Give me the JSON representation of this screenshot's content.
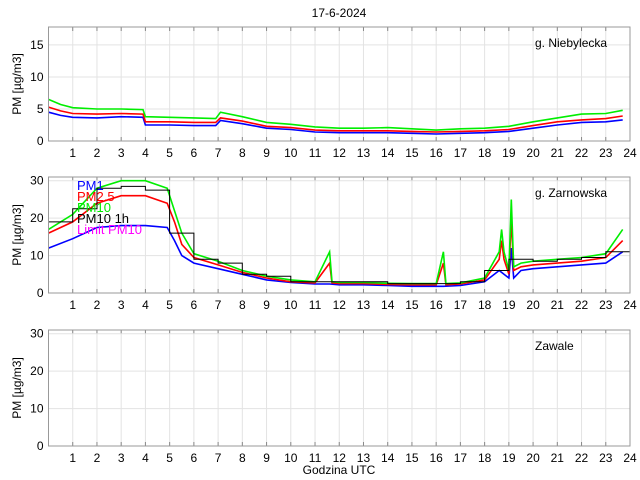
{
  "chart_data": [
    {
      "type": "line",
      "title": "17-6-2024",
      "station": "g. Niebylecka",
      "ylabel": "PM [µg/m3]",
      "xlabel": "",
      "xlim": [
        0,
        24
      ],
      "ylim": [
        0,
        17.8
      ],
      "yticks": [
        0,
        5,
        10,
        15
      ],
      "xticks": [
        1,
        2,
        3,
        4,
        5,
        6,
        7,
        8,
        9,
        10,
        11,
        12,
        13,
        14,
        15,
        16,
        17,
        18,
        19,
        20,
        21,
        22,
        23,
        24
      ],
      "grid": true,
      "series": [
        {
          "name": "PM1",
          "color": "#0000ff",
          "points": [
            [
              0,
              4.5
            ],
            [
              0.5,
              4
            ],
            [
              1,
              3.7
            ],
            [
              2,
              3.6
            ],
            [
              3,
              3.8
            ],
            [
              3.9,
              3.7
            ],
            [
              4,
              2.5
            ],
            [
              5,
              2.5
            ],
            [
              6,
              2.4
            ],
            [
              6.9,
              2.4
            ],
            [
              7.1,
              3.2
            ],
            [
              8,
              2.7
            ],
            [
              9,
              2
            ],
            [
              10,
              1.8
            ],
            [
              11,
              1.4
            ],
            [
              12,
              1.3
            ],
            [
              13,
              1.3
            ],
            [
              14,
              1.3
            ],
            [
              15,
              1.2
            ],
            [
              16,
              1.1
            ],
            [
              17,
              1.2
            ],
            [
              18,
              1.3
            ],
            [
              19,
              1.5
            ],
            [
              20,
              2
            ],
            [
              21,
              2.5
            ],
            [
              22,
              2.9
            ],
            [
              23,
              3
            ],
            [
              23.7,
              3.3
            ]
          ]
        },
        {
          "name": "PM2.5",
          "color": "#ff0000",
          "points": [
            [
              0,
              5.3
            ],
            [
              0.5,
              4.7
            ],
            [
              1,
              4.3
            ],
            [
              2,
              4.2
            ],
            [
              3,
              4.3
            ],
            [
              3.9,
              4.2
            ],
            [
              4,
              3
            ],
            [
              5,
              3
            ],
            [
              6,
              2.9
            ],
            [
              6.9,
              2.9
            ],
            [
              7.1,
              3.6
            ],
            [
              8,
              3.1
            ],
            [
              9,
              2.3
            ],
            [
              10,
              2.1
            ],
            [
              11,
              1.7
            ],
            [
              12,
              1.6
            ],
            [
              13,
              1.6
            ],
            [
              14,
              1.6
            ],
            [
              15,
              1.5
            ],
            [
              16,
              1.4
            ],
            [
              17,
              1.5
            ],
            [
              18,
              1.6
            ],
            [
              19,
              1.8
            ],
            [
              20,
              2.4
            ],
            [
              21,
              3
            ],
            [
              22,
              3.3
            ],
            [
              23,
              3.5
            ],
            [
              23.7,
              3.9
            ]
          ]
        },
        {
          "name": "PM10",
          "color": "#00ee00",
          "points": [
            [
              0,
              6.5
            ],
            [
              0.5,
              5.7
            ],
            [
              1,
              5.2
            ],
            [
              2,
              5
            ],
            [
              3,
              5
            ],
            [
              3.9,
              4.9
            ],
            [
              4,
              3.8
            ],
            [
              5,
              3.7
            ],
            [
              6,
              3.6
            ],
            [
              6.9,
              3.5
            ],
            [
              7.1,
              4.5
            ],
            [
              8,
              3.8
            ],
            [
              9,
              2.9
            ],
            [
              10,
              2.6
            ],
            [
              11,
              2.2
            ],
            [
              12,
              2
            ],
            [
              13,
              2
            ],
            [
              14,
              2.1
            ],
            [
              15,
              1.9
            ],
            [
              16,
              1.7
            ],
            [
              17,
              1.9
            ],
            [
              18,
              2
            ],
            [
              19,
              2.3
            ],
            [
              20,
              3
            ],
            [
              21,
              3.6
            ],
            [
              22,
              4.2
            ],
            [
              23,
              4.3
            ],
            [
              23.7,
              4.8
            ]
          ]
        }
      ]
    },
    {
      "type": "line",
      "station": "g. Zarnowska",
      "ylabel": "PM [µg/m3]",
      "xlim": [
        0,
        24
      ],
      "ylim": [
        0,
        31
      ],
      "yticks": [
        0,
        10,
        20,
        30
      ],
      "xticks": [
        1,
        2,
        3,
        4,
        5,
        6,
        7,
        8,
        9,
        10,
        11,
        12,
        13,
        14,
        15,
        16,
        17,
        18,
        19,
        20,
        21,
        22,
        23,
        24
      ],
      "grid": true,
      "legend": [
        "PM1",
        "PM2.5",
        "PM10",
        "PM10 1h",
        "Limit PM10"
      ],
      "legend_position": "top-left",
      "series": [
        {
          "name": "PM1",
          "color": "#0000ff",
          "points": [
            [
              0,
              12
            ],
            [
              1,
              14.5
            ],
            [
              2,
              17.5
            ],
            [
              3,
              18
            ],
            [
              4,
              18
            ],
            [
              4.9,
              17.5
            ],
            [
              5.2,
              14
            ],
            [
              5.5,
              10
            ],
            [
              6,
              8
            ],
            [
              7,
              6.5
            ],
            [
              8,
              5
            ],
            [
              9,
              3.5
            ],
            [
              10,
              2.8
            ],
            [
              11,
              2.4
            ],
            [
              11.6,
              2.4
            ],
            [
              12,
              2.2
            ],
            [
              13,
              2.2
            ],
            [
              14,
              2
            ],
            [
              15,
              1.8
            ],
            [
              16,
              1.8
            ],
            [
              16.3,
              1.8
            ],
            [
              17,
              2
            ],
            [
              18,
              3
            ],
            [
              18.6,
              6
            ],
            [
              18.8,
              5
            ],
            [
              19,
              4
            ],
            [
              19.1,
              12
            ],
            [
              19.2,
              4
            ],
            [
              19.5,
              6
            ],
            [
              20,
              6.5
            ],
            [
              21,
              7
            ],
            [
              22,
              7.5
            ],
            [
              23,
              8
            ],
            [
              23.7,
              11
            ]
          ]
        },
        {
          "name": "PM2.5",
          "color": "#ff0000",
          "points": [
            [
              0,
              16
            ],
            [
              1,
              19
            ],
            [
              2,
              24
            ],
            [
              3,
              26
            ],
            [
              4,
              26
            ],
            [
              4.9,
              24
            ],
            [
              5.2,
              19
            ],
            [
              5.5,
              13
            ],
            [
              6,
              9.5
            ],
            [
              7,
              7.5
            ],
            [
              8,
              5.5
            ],
            [
              9,
              4
            ],
            [
              10,
              3
            ],
            [
              11,
              2.7
            ],
            [
              11.6,
              8
            ],
            [
              11.7,
              2.7
            ],
            [
              12,
              2.5
            ],
            [
              13,
              2.5
            ],
            [
              14,
              2.3
            ],
            [
              15,
              2.2
            ],
            [
              16,
              2.2
            ],
            [
              16.3,
              8
            ],
            [
              16.4,
              2.2
            ],
            [
              17,
              2.4
            ],
            [
              18,
              3.5
            ],
            [
              18.6,
              9
            ],
            [
              18.7,
              14
            ],
            [
              18.8,
              9
            ],
            [
              19,
              5
            ],
            [
              19.1,
              20
            ],
            [
              19.2,
              6
            ],
            [
              19.5,
              7
            ],
            [
              20,
              7.5
            ],
            [
              21,
              8
            ],
            [
              22,
              8.5
            ],
            [
              23,
              9.5
            ],
            [
              23.7,
              14
            ]
          ]
        },
        {
          "name": "PM10",
          "color": "#00ee00",
          "points": [
            [
              0,
              17
            ],
            [
              1,
              21
            ],
            [
              2,
              28
            ],
            [
              3,
              30
            ],
            [
              4,
              30
            ],
            [
              4.9,
              28
            ],
            [
              5.2,
              22
            ],
            [
              5.5,
              16
            ],
            [
              6,
              10.5
            ],
            [
              7,
              8.5
            ],
            [
              8,
              6
            ],
            [
              9,
              4.5
            ],
            [
              10,
              3.5
            ],
            [
              11,
              3
            ],
            [
              11.6,
              11
            ],
            [
              11.7,
              3
            ],
            [
              12,
              2.8
            ],
            [
              13,
              2.8
            ],
            [
              14,
              2.6
            ],
            [
              15,
              2.5
            ],
            [
              16,
              2.5
            ],
            [
              16.3,
              11
            ],
            [
              16.4,
              2.5
            ],
            [
              17,
              2.7
            ],
            [
              18,
              4
            ],
            [
              18.6,
              11
            ],
            [
              18.7,
              17
            ],
            [
              18.8,
              11
            ],
            [
              19,
              6
            ],
            [
              19.1,
              25
            ],
            [
              19.2,
              7
            ],
            [
              19.5,
              8
            ],
            [
              20,
              8.5
            ],
            [
              21,
              9
            ],
            [
              22,
              9.5
            ],
            [
              23,
              10.5
            ],
            [
              23.7,
              17
            ]
          ]
        },
        {
          "name": "PM10 1h",
          "color": "#000000",
          "step_values": [
            19,
            22.5,
            28,
            28.5,
            27.5,
            16,
            9,
            8,
            5,
            4.5,
            3,
            3,
            3,
            3,
            2.5,
            2.5,
            2.5,
            3,
            6,
            9,
            8.5,
            9,
            9.5,
            11
          ]
        }
      ]
    },
    {
      "type": "line",
      "station": "Zawale",
      "ylabel": "PM [µg/m3]",
      "xlabel": "Godzina UTC",
      "xlim": [
        0,
        24
      ],
      "ylim": [
        0,
        31
      ],
      "yticks": [
        0,
        10,
        20,
        30
      ],
      "xticks": [
        1,
        2,
        3,
        4,
        5,
        6,
        7,
        8,
        9,
        10,
        11,
        12,
        13,
        14,
        15,
        16,
        17,
        18,
        19,
        20,
        21,
        22,
        23,
        24
      ],
      "grid": true,
      "series": []
    }
  ]
}
